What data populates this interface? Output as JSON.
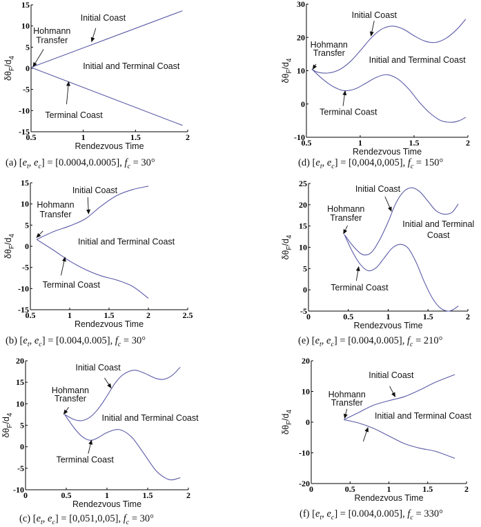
{
  "line_color": "#5a5aa8",
  "chart_data": [
    {
      "id": "a",
      "type": "line",
      "caption": {
        "label": "(a)",
        "vars": "[e_t, e_c]",
        "values": "[0.0004,0.0005]",
        "fc": "30°"
      },
      "xlabel": "Rendezvous Time",
      "ylabel": {
        "main": "δθ",
        "sub1": "F",
        "mid": "/d",
        "sub2": "4"
      },
      "xlim": [
        0.5,
        2
      ],
      "ylim": [
        -15,
        15
      ],
      "xticks": [
        "0.5",
        "1",
        "1.5",
        "2"
      ],
      "xtick_values": [
        0.5,
        1,
        1.5,
        2
      ],
      "yticks": [
        "-15",
        "-10",
        "-5",
        "0",
        "5",
        "10",
        "15"
      ],
      "ytick_values": [
        -15,
        -10,
        -5,
        0,
        5,
        10,
        15
      ],
      "series": [
        {
          "name": "Initial Coast",
          "x": [
            0.5,
            1.95
          ],
          "y": [
            0.2,
            13.6
          ]
        },
        {
          "name": "Terminal Coast",
          "x": [
            0.5,
            1.95
          ],
          "y": [
            0.2,
            -13.5
          ]
        }
      ],
      "annotations": [
        {
          "text": "Initial Coast",
          "x": 1.19,
          "y": 11.9,
          "arrow": [
            [
              1.12,
              9.5
            ],
            [
              1.08,
              6.3
            ]
          ]
        },
        {
          "text": "Hohmann",
          "x": 0.7,
          "y": 8.8
        },
        {
          "text": "Transfer",
          "x": 0.7,
          "y": 6.6,
          "arrow": [
            [
              0.62,
              4.5
            ],
            [
              0.52,
              0.4
            ]
          ]
        },
        {
          "text": "Initial and Terminal Coast",
          "x": 1.46,
          "y": 0.5
        },
        {
          "text": "Terminal Coast",
          "x": 0.91,
          "y": -11.1,
          "arrow": [
            [
              0.84,
              -8.5
            ],
            [
              0.86,
              -3.2
            ]
          ]
        }
      ]
    },
    {
      "id": "b",
      "type": "line",
      "caption": {
        "label": "(b)",
        "vars": "[e_t, e_c]",
        "values": "[0.004,0.005]",
        "fc": "30°"
      },
      "xlabel": "Rendezvous Time",
      "ylabel": {
        "main": "δθ",
        "sub1": "F",
        "mid": "/d",
        "sub2": "4"
      },
      "xlim": [
        0.5,
        2.5
      ],
      "ylim": [
        -15,
        15
      ],
      "xticks": [
        "0.5",
        "1",
        "1.5",
        "2",
        "2.5"
      ],
      "xtick_values": [
        0.5,
        1,
        1.5,
        2,
        2.5
      ],
      "yticks": [
        "-15",
        "-10",
        "-5",
        "0",
        "5",
        "10",
        "15"
      ],
      "ytick_values": [
        -15,
        -10,
        -5,
        0,
        5,
        10,
        15
      ],
      "series": [
        {
          "name": "Initial Coast",
          "x": [
            0.58,
            0.8,
            1.0,
            1.2,
            1.4,
            1.6,
            1.8,
            2.0
          ],
          "y": [
            1.6,
            3.5,
            4.8,
            6.5,
            9.5,
            12,
            13.4,
            14.2
          ]
        },
        {
          "name": "Terminal Coast",
          "x": [
            0.58,
            0.8,
            1.0,
            1.2,
            1.4,
            1.6,
            1.8,
            2.0
          ],
          "y": [
            1.6,
            -1,
            -3.5,
            -5.5,
            -7,
            -8,
            -9.5,
            -12.3
          ]
        }
      ],
      "annotations": [
        {
          "text": "Initial Coast",
          "x": 1.32,
          "y": 13.2,
          "arrow": [
            [
              1.23,
              11.6
            ],
            [
              1.24,
              7.7
            ]
          ]
        },
        {
          "text": "Hohmann",
          "x": 0.82,
          "y": 9.8
        },
        {
          "text": "Transfer",
          "x": 0.82,
          "y": 7.5,
          "arrow": [
            [
              0.66,
              3.6
            ],
            [
              0.58,
              2.1
            ]
          ]
        },
        {
          "text": "Initial and Terminal Coast",
          "x": 1.72,
          "y": 1.1
        },
        {
          "text": "Terminal Coast",
          "x": 1.02,
          "y": -9.1,
          "arrow": [
            [
              0.89,
              -6.9
            ],
            [
              0.94,
              -2.6
            ]
          ]
        }
      ]
    },
    {
      "id": "c",
      "type": "line",
      "caption": {
        "label": "(c)",
        "vars": "[e_t, e_c]",
        "values": "[0,051,0,05]",
        "fc": "30°"
      },
      "xlabel": "Rendezvous Time",
      "ylabel": {
        "main": "δθ",
        "sub1": "F",
        "mid": "/d",
        "sub2": "4"
      },
      "xlim": [
        0,
        2
      ],
      "ylim": [
        -10,
        20
      ],
      "xticks": [
        "0",
        "0.5",
        "1",
        "1.5",
        "2"
      ],
      "xtick_values": [
        0,
        0.5,
        1,
        1.5,
        2
      ],
      "yticks": [
        "-10",
        "-5",
        "0",
        "5",
        "10",
        "15",
        "20"
      ],
      "ytick_values": [
        -10,
        -5,
        0,
        5,
        10,
        15,
        20
      ],
      "series": [
        {
          "name": "Initial Coast",
          "x": [
            0.48,
            0.6,
            0.7,
            0.8,
            0.9,
            1.0,
            1.1,
            1.2,
            1.33,
            1.45,
            1.6,
            1.7,
            1.8,
            1.9
          ],
          "y": [
            7.5,
            6.3,
            6.1,
            7,
            9,
            11.8,
            14.8,
            16.8,
            17.8,
            17.2,
            15.9,
            15.7,
            16.6,
            18.5
          ]
        },
        {
          "name": "Terminal Coast",
          "x": [
            0.48,
            0.6,
            0.7,
            0.8,
            0.9,
            1.0,
            1.15,
            1.3,
            1.45,
            1.6,
            1.72,
            1.8,
            1.9
          ],
          "y": [
            7.5,
            4.3,
            2.3,
            1.5,
            2.2,
            3.3,
            4.0,
            2.3,
            -1.5,
            -5.5,
            -7.3,
            -7.7,
            -7.2
          ]
        }
      ],
      "annotations": [
        {
          "text": "Initial Coast",
          "x": 0.89,
          "y": 18.4,
          "arrow": [
            [
              0.97,
              16
            ],
            [
              1.05,
              13.7
            ]
          ]
        },
        {
          "text": "Hohmann",
          "x": 0.55,
          "y": 13.1
        },
        {
          "text": "Transfer",
          "x": 0.55,
          "y": 11.2,
          "arrow": [
            [
              0.53,
              9.2
            ],
            [
              0.47,
              7.6
            ]
          ]
        },
        {
          "text": "Initial and Terminal Coast",
          "x": 1.53,
          "y": 6.7
        },
        {
          "text": "Terminal Coast",
          "x": 0.73,
          "y": -3.0,
          "arrow": [
            [
              0.77,
              -1.6
            ],
            [
              0.81,
              1.5
            ]
          ]
        }
      ]
    },
    {
      "id": "d",
      "type": "line",
      "caption": {
        "label": "(d)",
        "vars": "[e_t, e_c]",
        "values": "[0,004,0,005]",
        "fc": "150°"
      },
      "xlabel": "Rendezvous Time",
      "ylabel": {
        "main": "δθ",
        "sub1": "F",
        "mid": "/d",
        "sub2": "4"
      },
      "xlim": [
        0.5,
        2
      ],
      "ylim": [
        -10,
        30
      ],
      "xticks": [
        "0.5",
        "1",
        "1.5",
        "2"
      ],
      "xtick_values": [
        0.5,
        1,
        1.5,
        2
      ],
      "yticks": [
        "-10",
        "0",
        "10",
        "20",
        "30"
      ],
      "ytick_values": [
        -10,
        0,
        10,
        20,
        30
      ],
      "series": [
        {
          "name": "Initial Coast",
          "x": [
            0.55,
            0.6,
            0.7,
            0.8,
            0.9,
            1.0,
            1.1,
            1.2,
            1.3,
            1.4,
            1.5,
            1.6,
            1.7,
            1.8,
            1.9,
            1.98
          ],
          "y": [
            10.5,
            9.6,
            9.3,
            10.2,
            12.5,
            16,
            19.8,
            22.5,
            23.4,
            22.5,
            20.5,
            18.9,
            18.5,
            19.8,
            22.5,
            25.5
          ]
        },
        {
          "name": "Terminal Coast",
          "x": [
            0.55,
            0.65,
            0.75,
            0.85,
            0.95,
            1.05,
            1.15,
            1.25,
            1.35,
            1.45,
            1.55,
            1.65,
            1.75,
            1.85,
            1.92,
            1.98
          ],
          "y": [
            10.5,
            7.5,
            5.2,
            4.0,
            4.5,
            6.2,
            8,
            8.8,
            7.5,
            4.5,
            0.5,
            -2.8,
            -5,
            -5.5,
            -5,
            -4
          ]
        }
      ],
      "annotations": [
        {
          "text": "Initial Coast",
          "x": 1.13,
          "y": 26.7,
          "arrow": [
            [
              1.13,
              25.0
            ],
            [
              1.1,
              20.5
            ]
          ]
        },
        {
          "text": "Hohmann",
          "x": 0.71,
          "y": 17.8
        },
        {
          "text": "Transfer",
          "x": 0.71,
          "y": 15.3,
          "arrow": [
            [
              0.59,
              12
            ],
            [
              0.56,
              10.5
            ]
          ]
        },
        {
          "text": "Initial and Terminal Coast",
          "x": 1.53,
          "y": 13.2
        },
        {
          "text": "Terminal Coast",
          "x": 0.89,
          "y": -2.4,
          "arrow": [
            [
              0.84,
              -0.6
            ],
            [
              0.86,
              3.9
            ]
          ]
        }
      ]
    },
    {
      "id": "e",
      "type": "line",
      "caption": {
        "label": "(e)",
        "vars": "[e_t, e_c]",
        "values": "[0.004,0.005]",
        "fc": "210°"
      },
      "xlabel": "Rendezvous Time",
      "ylabel": {
        "main": "δθ",
        "sub1": "F",
        "mid": "/d",
        "sub2": "4"
      },
      "xlim": [
        0,
        2
      ],
      "ylim": [
        -5,
        25
      ],
      "xticks": [
        "0",
        "0.5",
        "1",
        "1.5",
        "2"
      ],
      "xtick_values": [
        0,
        0.5,
        1,
        1.5,
        2
      ],
      "yticks": [
        "-5",
        "0",
        "5",
        "10",
        "15",
        "20",
        "25"
      ],
      "ytick_values": [
        -5,
        0,
        5,
        10,
        15,
        20,
        25
      ],
      "series": [
        {
          "name": "Initial Coast",
          "x": [
            0.45,
            0.55,
            0.65,
            0.72,
            0.8,
            0.9,
            1.0,
            1.1,
            1.2,
            1.3,
            1.4,
            1.5,
            1.6,
            1.7,
            1.8,
            1.88
          ],
          "y": [
            13,
            10.5,
            8.6,
            8.2,
            9,
            12,
            16,
            20.5,
            23.2,
            24,
            23,
            20.8,
            18.6,
            17.8,
            18.2,
            20.2
          ]
        },
        {
          "name": "Terminal Coast",
          "x": [
            0.45,
            0.55,
            0.65,
            0.75,
            0.85,
            0.95,
            1.05,
            1.15,
            1.25,
            1.35,
            1.45,
            1.55,
            1.65,
            1.75,
            1.82,
            1.88
          ],
          "y": [
            13,
            9,
            6,
            4.5,
            5.2,
            7.5,
            9.8,
            10.7,
            9.8,
            6.5,
            2,
            -1.8,
            -4.2,
            -5,
            -4.6,
            -3.8
          ]
        }
      ],
      "annotations": [
        {
          "text": "Initial Coast",
          "x": 0.87,
          "y": 23.7,
          "arrow": [
            [
              0.96,
              21.9
            ],
            [
              1.04,
              18.5
            ]
          ]
        },
        {
          "text": "Hohmann",
          "x": 0.47,
          "y": 19
        },
        {
          "text": "Transfer",
          "x": 0.47,
          "y": 16.9,
          "arrow": [
            [
              0.49,
              15.1
            ],
            [
              0.44,
              13.2
            ]
          ]
        },
        {
          "text": "Initial and Terminal",
          "x": 1.63,
          "y": 15.4
        },
        {
          "text": "Coast",
          "x": 1.63,
          "y": 12.8
        },
        {
          "text": "Terminal Coast",
          "x": 0.64,
          "y": 0.5,
          "arrow": [
            [
              0.6,
              2.1
            ],
            [
              0.63,
              5.4
            ]
          ]
        }
      ]
    },
    {
      "id": "f",
      "type": "line",
      "caption": {
        "label": "(f)",
        "vars": "[e_t, e_c]",
        "values": "[0.004,0.005]",
        "fc": "330°"
      },
      "xlabel": "Rendezvous Time",
      "ylabel": {
        "main": "δθ",
        "sub1": "F",
        "mid": "/d",
        "sub2": "4"
      },
      "xlim": [
        0,
        2
      ],
      "ylim": [
        -20,
        20
      ],
      "xticks": [
        "0",
        "0.5",
        "1",
        "1.5",
        "2"
      ],
      "xtick_values": [
        0,
        0.5,
        1,
        1.5,
        2
      ],
      "yticks": [
        "-20",
        "-10",
        "0",
        "10",
        "20"
      ],
      "ytick_values": [
        -20,
        -10,
        0,
        10,
        20
      ],
      "series": [
        {
          "name": "Initial Coast",
          "x": [
            0.42,
            0.6,
            0.8,
            1.0,
            1.2,
            1.4,
            1.6,
            1.85
          ],
          "y": [
            0.8,
            3,
            5.5,
            7,
            8.3,
            10.5,
            13,
            15.5
          ]
        },
        {
          "name": "Terminal Coast",
          "x": [
            0.42,
            0.6,
            0.8,
            1.0,
            1.2,
            1.4,
            1.6,
            1.85
          ],
          "y": [
            0.8,
            -0.2,
            -2,
            -4.5,
            -7,
            -8.5,
            -9.5,
            -11.8
          ]
        }
      ],
      "annotations": [
        {
          "text": "Initial Coast",
          "x": 1.03,
          "y": 15.3,
          "arrow": [
            [
              1.01,
              11.7
            ],
            [
              1.08,
              8.3
            ]
          ]
        },
        {
          "text": "Hohmann",
          "x": 0.46,
          "y": 9
        },
        {
          "text": "Transfer",
          "x": 0.46,
          "y": 6.3,
          "arrow": [
            [
              0.46,
              4.3
            ],
            [
              0.43,
              1.3
            ]
          ]
        },
        {
          "text": "Initial and Terminal Coast",
          "x": 1.44,
          "y": 2
        },
        {
          "text": "",
          "x": 0.67,
          "y": -6.3,
          "arrow": [
            [
              0.67,
              -6.3
            ],
            [
              0.73,
              -1.8
            ]
          ]
        }
      ]
    }
  ]
}
